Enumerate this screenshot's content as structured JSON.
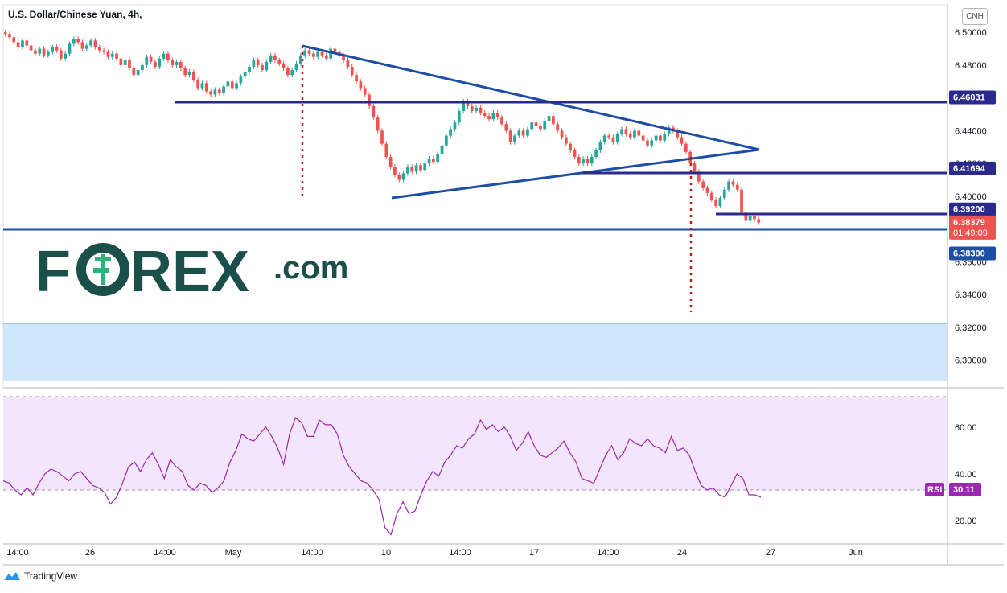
{
  "chart_title": "U.S. Dollar/Chinese Yuan, 4h,",
  "symbol_button": "CNH",
  "footer_brand": "TradingView",
  "logo": {
    "text_left": "F",
    "text_right": "REX",
    "suffix": ".com",
    "color": "#1b4f4a",
    "accent": "#2db37c"
  },
  "colors": {
    "up": "#26a69a",
    "down": "#ef5350",
    "trendline": "#1d4ea6",
    "level": "#2a2a8c",
    "support": "#1f4fa3",
    "target_zone": "#cfe6fb",
    "rsi_line": "#9c27b0",
    "rsi_band": "#f3e5fb"
  },
  "price_axis": {
    "ticks": [
      "6.50000",
      "6.48000",
      "6.44000",
      "6.42000",
      "6.40000",
      "6.36000",
      "6.34000",
      "6.32000",
      "6.30000"
    ]
  },
  "rsi_axis": {
    "ticks": [
      "60.00",
      "40.00",
      "20.00"
    ],
    "label": "RSI",
    "value": "30.11"
  },
  "time_axis": {
    "labels": [
      "14:00",
      "26",
      "14:00",
      "May",
      "14:00",
      "10",
      "14:00",
      "17",
      "14:00",
      "24",
      "27",
      "Jun"
    ]
  },
  "price_tags": [
    {
      "label": "6.46031",
      "value": 6.46031,
      "color": "#2a2a8c"
    },
    {
      "label": "6.41694",
      "value": 6.41694,
      "color": "#2a2a8c"
    },
    {
      "label": "6.39200",
      "value": 6.392,
      "color": "#2a2a8c"
    },
    {
      "label": "6.38379",
      "sub": "01:49:09",
      "value": 6.38379,
      "color": "#ef5350"
    },
    {
      "label": "6.38300",
      "value": 6.383,
      "color": "#1f4fa3"
    }
  ],
  "chart_data": {
    "type": "candlestick",
    "title": "U.S. Dollar/Chinese Yuan, 4h,",
    "ylim": [
      6.29,
      6.505
    ],
    "rsi_ylim": [
      10,
      73
    ],
    "candles_close": [
      6.499,
      6.497,
      6.494,
      6.491,
      6.495,
      6.492,
      6.489,
      6.487,
      6.49,
      6.486,
      6.488,
      6.491,
      6.489,
      6.484,
      6.487,
      6.493,
      6.496,
      6.494,
      6.49,
      6.492,
      6.495,
      6.491,
      6.489,
      6.488,
      6.485,
      6.487,
      6.484,
      6.48,
      6.483,
      6.478,
      6.474,
      6.477,
      6.48,
      6.485,
      6.482,
      6.479,
      6.484,
      6.487,
      6.483,
      6.48,
      6.482,
      6.478,
      6.474,
      6.476,
      6.471,
      6.466,
      6.469,
      6.464,
      6.462,
      6.465,
      6.463,
      6.467,
      6.47,
      6.466,
      6.469,
      6.473,
      6.476,
      6.479,
      6.483,
      6.48,
      6.477,
      6.482,
      6.486,
      6.483,
      6.481,
      6.478,
      6.474,
      6.477,
      6.481,
      6.486,
      6.489,
      6.487,
      6.485,
      6.488,
      6.486,
      6.484,
      6.49,
      6.488,
      6.486,
      6.483,
      6.479,
      6.474,
      6.47,
      6.466,
      6.462,
      6.455,
      6.448,
      6.44,
      6.432,
      6.424,
      6.418,
      6.413,
      6.41,
      6.414,
      6.418,
      6.415,
      6.419,
      6.416,
      6.42,
      6.423,
      6.421,
      6.426,
      6.431,
      6.437,
      6.441,
      6.445,
      6.452,
      6.458,
      6.455,
      6.452,
      6.454,
      6.451,
      6.449,
      6.447,
      6.451,
      6.448,
      6.444,
      6.44,
      6.433,
      6.437,
      6.44,
      6.437,
      6.441,
      6.445,
      6.443,
      6.441,
      6.446,
      6.449,
      6.444,
      6.44,
      6.436,
      6.432,
      6.428,
      6.424,
      6.42,
      6.423,
      6.42,
      6.424,
      6.428,
      6.433,
      6.437,
      6.436,
      6.433,
      6.438,
      6.441,
      6.438,
      6.436,
      6.44,
      6.437,
      6.434,
      6.431,
      6.434,
      6.437,
      6.434,
      6.438,
      6.442,
      6.44,
      6.436,
      6.432,
      6.427,
      6.42,
      6.415,
      6.409,
      6.405,
      6.402,
      6.398,
      6.394,
      6.399,
      6.404,
      6.409,
      6.407,
      6.404,
      6.39,
      6.385,
      6.388,
      6.386,
      6.384
    ],
    "rsi_values": [
      37,
      36,
      33,
      31,
      34,
      31,
      36,
      40,
      42,
      41,
      39,
      37,
      40,
      41,
      38,
      35,
      34,
      32,
      27,
      30,
      36,
      43,
      45,
      41,
      46,
      49,
      44,
      38,
      46,
      43,
      41,
      35,
      33,
      36,
      35,
      32,
      34,
      37,
      45,
      50,
      57,
      55,
      54,
      57,
      60,
      56,
      51,
      44,
      57,
      64,
      62,
      56,
      56,
      63,
      61,
      61,
      57,
      48,
      43,
      40,
      37,
      36,
      33,
      29,
      17,
      14,
      23,
      28,
      23,
      24,
      31,
      37,
      41,
      39,
      45,
      48,
      52,
      51,
      55,
      57,
      63,
      59,
      61,
      58,
      60,
      56,
      50,
      53,
      58,
      52,
      48,
      47,
      49,
      51,
      54,
      49,
      45,
      38,
      37,
      36,
      42,
      48,
      52,
      46,
      49,
      55,
      53,
      52,
      55,
      52,
      51,
      49,
      56,
      50,
      51,
      48,
      41,
      35,
      33,
      34,
      31,
      30,
      35,
      40,
      38,
      31,
      31,
      30
    ]
  }
}
